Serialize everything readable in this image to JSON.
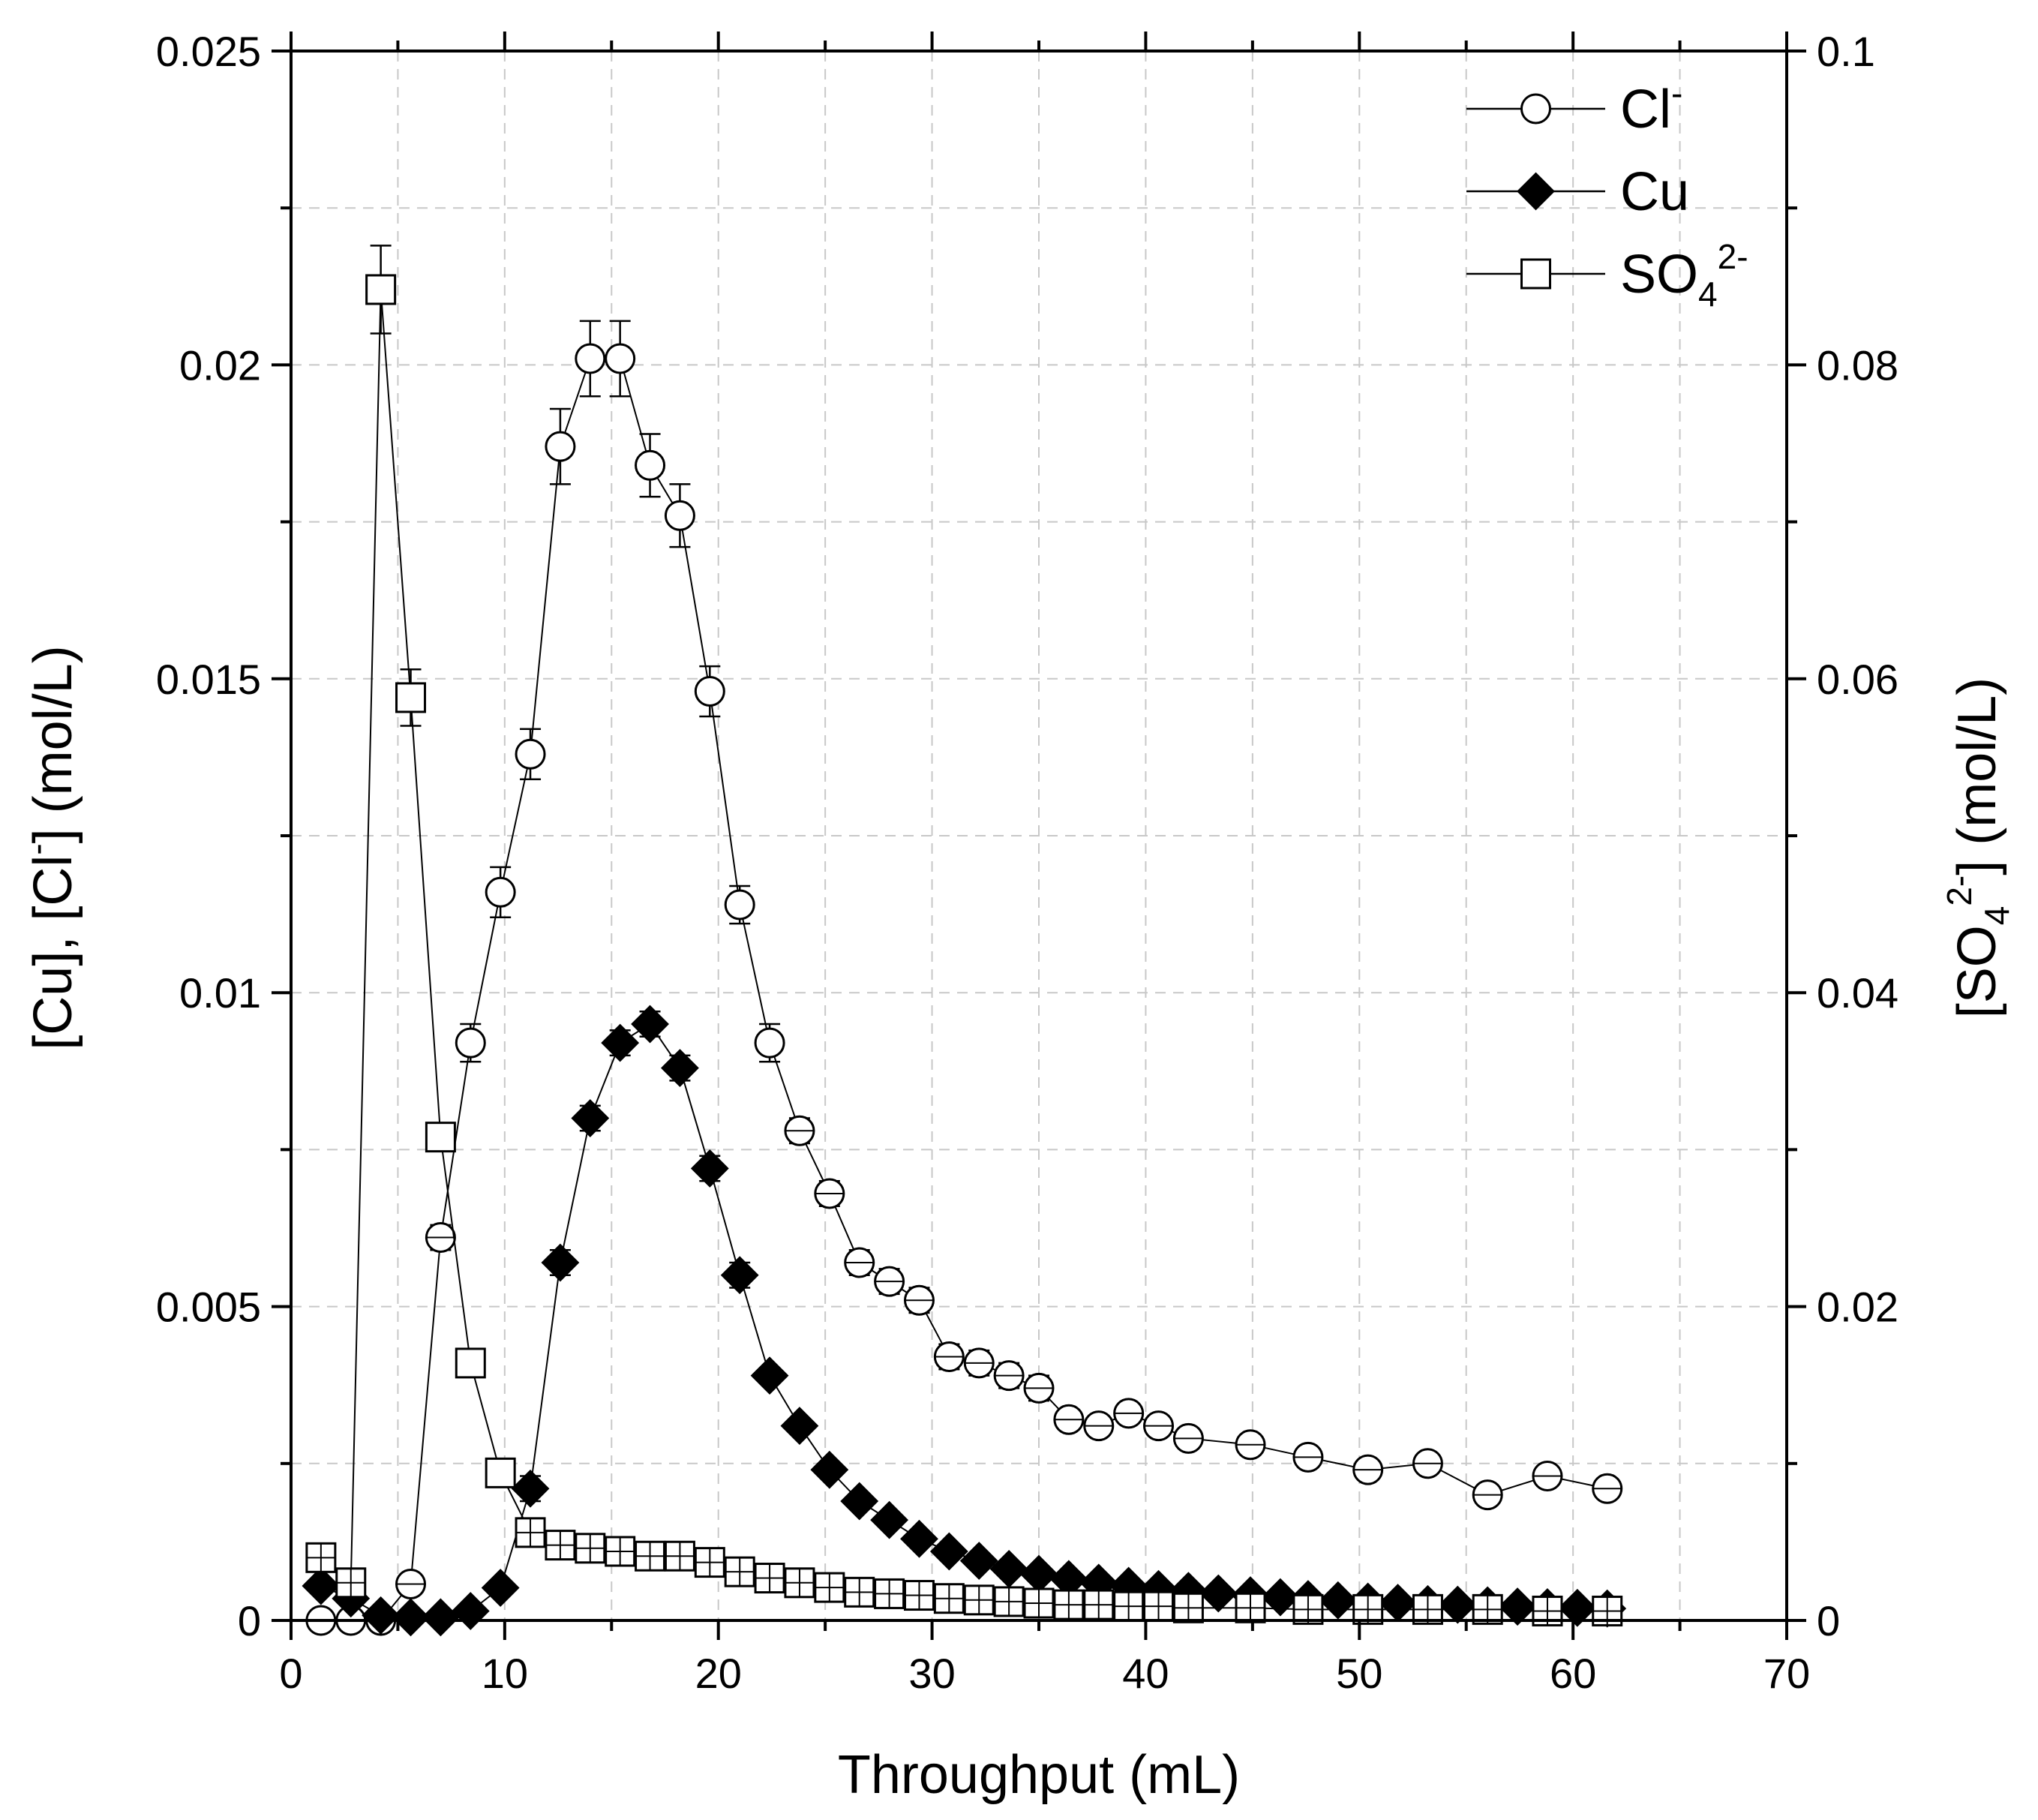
{
  "chart_data": {
    "type": "line",
    "x_label": "Throughput (mL)",
    "y_left_label_parts": [
      "[Cu], [Cl",
      "-",
      "] (mol/L)"
    ],
    "y_right_label_parts": [
      "[SO",
      "4",
      "2-",
      "] (mol/L)"
    ],
    "xlim": [
      0,
      70
    ],
    "ylim_left": [
      0,
      0.025
    ],
    "ylim_right": [
      0,
      0.1
    ],
    "x_ticks": [
      0,
      10,
      20,
      30,
      40,
      50,
      60,
      70
    ],
    "x_tick_labels": [
      "0",
      "10",
      "20",
      "30",
      "40",
      "50",
      "60",
      "70"
    ],
    "y_left_ticks": [
      0,
      0.005,
      0.01,
      0.015,
      0.02,
      0.025
    ],
    "y_left_tick_labels": [
      "0",
      "0.005",
      "0.01",
      "0.015",
      "0.02",
      "0.025"
    ],
    "y_right_ticks": [
      0,
      0.02,
      0.04,
      0.06,
      0.08,
      0.1
    ],
    "y_right_tick_labels": [
      "0",
      "0.02",
      "0.04",
      "0.06",
      "0.08",
      "0.1"
    ],
    "grid": true,
    "legend_position": "top-right",
    "series": [
      {
        "name": "Cl-",
        "legend_parts": [
          "Cl",
          "-",
          ""
        ],
        "axis": "left",
        "marker": "circle-open",
        "x": [
          1.4,
          2.8,
          4.2,
          5.6,
          7.0,
          8.4,
          9.8,
          11.2,
          12.6,
          14.0,
          15.4,
          16.8,
          18.2,
          19.6,
          21.0,
          22.4,
          23.8,
          25.2,
          26.6,
          28.0,
          29.4,
          30.8,
          32.2,
          33.6,
          35.0,
          36.4,
          37.8,
          39.2,
          40.6,
          42.0,
          44.9,
          47.6,
          50.4,
          53.2,
          56.0,
          58.8,
          61.6
        ],
        "y": [
          0.0,
          0.0,
          0.0,
          0.00058,
          0.0061,
          0.0092,
          0.0116,
          0.0138,
          0.0187,
          0.0201,
          0.0201,
          0.0184,
          0.0176,
          0.0148,
          0.0114,
          0.0092,
          0.0078,
          0.0068,
          0.0057,
          0.0054,
          0.0051,
          0.0042,
          0.0041,
          0.0039,
          0.0037,
          0.0032,
          0.0031,
          0.0033,
          0.0031,
          0.0029,
          0.0028,
          0.0026,
          0.0024,
          0.0025,
          0.002,
          0.0023,
          0.0021
        ],
        "error": [
          0.0,
          0.0,
          0.0,
          0.0001,
          0.0002,
          0.0003,
          0.0004,
          0.0004,
          0.0006,
          0.0006,
          0.0006,
          0.0005,
          0.0005,
          0.0004,
          0.0003,
          0.0003,
          0.0002,
          0.0002,
          0.0002,
          0.0002,
          0.0002,
          0.0002,
          0.0002,
          0.0002,
          0.0002,
          0.0001,
          0.0001,
          0.0001,
          0.0001,
          0.0001,
          0.0001,
          0.0001,
          0.0001,
          0.0001,
          0.0001,
          0.0001,
          0.0001
        ]
      },
      {
        "name": "Cu",
        "legend_parts": [
          "Cu",
          "",
          ""
        ],
        "axis": "left",
        "marker": "diamond-filled",
        "x": [
          1.4,
          2.8,
          4.2,
          5.6,
          7.0,
          8.4,
          9.8,
          11.2,
          12.6,
          14.0,
          15.4,
          16.8,
          18.2,
          19.6,
          21.0,
          22.4,
          23.8,
          25.2,
          26.6,
          28.0,
          29.4,
          30.8,
          32.2,
          33.6,
          35.0,
          36.4,
          37.8,
          39.2,
          40.6,
          42.0,
          43.4,
          44.9,
          46.3,
          47.6,
          49.0,
          50.4,
          51.8,
          53.2,
          54.6,
          56.0,
          57.4,
          58.8,
          60.2,
          61.6
        ],
        "y": [
          0.00055,
          0.00035,
          8e-05,
          5e-05,
          5e-05,
          0.00015,
          0.00052,
          0.0021,
          0.0057,
          0.008,
          0.0092,
          0.0095,
          0.0088,
          0.0072,
          0.0055,
          0.0039,
          0.0031,
          0.0024,
          0.0019,
          0.0016,
          0.0013,
          0.0011,
          0.00095,
          0.00082,
          0.00074,
          0.00066,
          0.0006,
          0.00055,
          0.0005,
          0.00047,
          0.00043,
          0.0004,
          0.00037,
          0.00034,
          0.00032,
          0.0003,
          0.00028,
          0.00026,
          0.00025,
          0.00024,
          0.00022,
          0.00021,
          0.0002,
          0.00019
        ],
        "error": [
          0.0001,
          0.0001,
          0.0,
          0.0,
          0.0,
          0.0,
          0.0001,
          0.0002,
          0.0002,
          0.0002,
          0.0002,
          0.0002,
          0.0002,
          0.0002,
          0.0002,
          0.0001,
          0.0001,
          0.0001,
          0.0001,
          0.0001,
          0.0001,
          0.0001,
          0.0,
          0.0,
          0.0,
          0.0,
          0.0,
          0.0,
          0.0,
          0.0,
          0.0,
          0.0,
          0.0,
          0.0,
          0.0,
          0.0,
          0.0,
          0.0,
          0.0,
          0.0,
          0.0,
          0.0,
          0.0,
          0.0
        ]
      },
      {
        "name": "SO42-",
        "legend_parts": [
          "SO",
          "4",
          "2-"
        ],
        "axis": "right",
        "marker": "square-open",
        "x": [
          1.4,
          2.8,
          4.2,
          5.6,
          7.0,
          8.4,
          9.8,
          11.2,
          12.6,
          14.0,
          15.4,
          16.8,
          18.2,
          19.6,
          21.0,
          22.4,
          23.8,
          25.2,
          26.6,
          28.0,
          29.4,
          30.8,
          32.2,
          33.6,
          35.0,
          36.4,
          37.8,
          39.2,
          40.6,
          42.0,
          44.9,
          47.6,
          50.4,
          53.2,
          56.0,
          58.8,
          61.6
        ],
        "y": [
          0.004,
          0.0024,
          0.0848,
          0.0588,
          0.0308,
          0.0164,
          0.0094,
          0.0056,
          0.0048,
          0.0046,
          0.0044,
          0.0041,
          0.0041,
          0.0037,
          0.0031,
          0.0027,
          0.0024,
          0.0021,
          0.0018,
          0.0017,
          0.0016,
          0.0014,
          0.0013,
          0.0012,
          0.0011,
          0.001,
          0.001,
          0.0009,
          0.0009,
          0.0008,
          0.0008,
          0.0007,
          0.0007,
          0.0007,
          0.0007,
          0.0006,
          0.0006
        ],
        "error": [
          0.0004,
          0.0002,
          0.0028,
          0.0018,
          0.0008,
          0.0005,
          0.0003,
          0.0002,
          0.0002,
          0.0002,
          0.0002,
          0.0002,
          0.0002,
          0.0002,
          0.0001,
          0.0001,
          0.0001,
          0.0001,
          0.0001,
          0.0001,
          0.0001,
          0.0001,
          0.0001,
          0.0001,
          0.0001,
          0.0001,
          0.0001,
          0.0001,
          0.0001,
          0.0001,
          0.0001,
          0.0001,
          0.0001,
          0.0001,
          0.0001,
          0.0001,
          0.0001
        ]
      }
    ]
  }
}
